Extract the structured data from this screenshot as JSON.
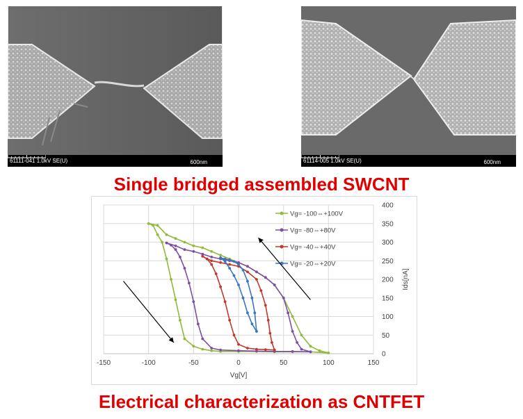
{
  "sem_images": [
    {
      "id_label": "61111-041 1.0kV SE(U)",
      "scale_label": "600nm"
    },
    {
      "id_label": "61114-005 1.0kV SE(U)",
      "scale_label": "600nm"
    }
  ],
  "captions": {
    "top": "Single bridged assembled SWCNT",
    "bottom": "Electrical characterization as CNTFET"
  },
  "colors": {
    "caption": "#e00000",
    "series": [
      "#8fba3a",
      "#7b4fa6",
      "#c0392b",
      "#3a75c4"
    ]
  },
  "chart_data": {
    "type": "scatter",
    "xlabel": "Vg[V]",
    "ylabel": "Ids[nA]",
    "xlim": [
      -150,
      150
    ],
    "ylim": [
      0,
      400
    ],
    "x_ticks": [
      -150,
      -100,
      -50,
      0,
      50,
      100,
      150
    ],
    "y_ticks": [
      0,
      50,
      100,
      150,
      200,
      250,
      300,
      350,
      400
    ],
    "y_axis_side": "right",
    "grid": true,
    "legend_position": "top-right",
    "series": [
      {
        "name": "Vg= -100⇔+100V",
        "forward": [
          [
            -100,
            350
          ],
          [
            -90,
            345
          ],
          [
            -80,
            320
          ],
          [
            -70,
            310
          ],
          [
            -60,
            300
          ],
          [
            -50,
            290
          ],
          [
            -40,
            285
          ],
          [
            -30,
            275
          ],
          [
            -20,
            265
          ],
          [
            -10,
            255
          ],
          [
            0,
            245
          ],
          [
            10,
            235
          ],
          [
            20,
            220
          ],
          [
            30,
            205
          ],
          [
            40,
            185
          ],
          [
            50,
            150
          ],
          [
            60,
            100
          ],
          [
            70,
            50
          ],
          [
            80,
            20
          ],
          [
            90,
            8
          ],
          [
            100,
            2
          ]
        ],
        "reverse": [
          [
            100,
            2
          ],
          [
            80,
            5
          ],
          [
            60,
            5
          ],
          [
            40,
            5
          ],
          [
            20,
            6
          ],
          [
            0,
            6
          ],
          [
            -20,
            6
          ],
          [
            -30,
            8
          ],
          [
            -40,
            12
          ],
          [
            -50,
            20
          ],
          [
            -60,
            40
          ],
          [
            -65,
            90
          ],
          [
            -70,
            145
          ],
          [
            -75,
            200
          ],
          [
            -80,
            255
          ],
          [
            -85,
            300
          ],
          [
            -90,
            320
          ],
          [
            -95,
            345
          ],
          [
            -100,
            350
          ]
        ]
      },
      {
        "name": "Vg= -80⇔+80V",
        "forward": [
          [
            -80,
            298
          ],
          [
            -70,
            290
          ],
          [
            -60,
            280
          ],
          [
            -50,
            275
          ],
          [
            -40,
            268
          ],
          [
            -30,
            260
          ],
          [
            -20,
            255
          ],
          [
            -10,
            250
          ],
          [
            0,
            245
          ],
          [
            10,
            235
          ],
          [
            20,
            220
          ],
          [
            30,
            205
          ],
          [
            40,
            185
          ],
          [
            50,
            150
          ],
          [
            55,
            110
          ],
          [
            60,
            60
          ],
          [
            65,
            30
          ],
          [
            70,
            12
          ],
          [
            80,
            5
          ]
        ],
        "reverse": [
          [
            80,
            5
          ],
          [
            60,
            6
          ],
          [
            40,
            6
          ],
          [
            20,
            7
          ],
          [
            0,
            8
          ],
          [
            -20,
            10
          ],
          [
            -30,
            15
          ],
          [
            -40,
            40
          ],
          [
            -45,
            80
          ],
          [
            -50,
            140
          ],
          [
            -55,
            190
          ],
          [
            -60,
            230
          ],
          [
            -65,
            260
          ],
          [
            -70,
            280
          ],
          [
            -75,
            292
          ],
          [
            -80,
            298
          ]
        ]
      },
      {
        "name": "Vg= -40⇔+40V",
        "forward": [
          [
            -40,
            262
          ],
          [
            -35,
            255
          ],
          [
            -30,
            250
          ],
          [
            -20,
            245
          ],
          [
            -10,
            240
          ],
          [
            0,
            235
          ],
          [
            10,
            220
          ],
          [
            20,
            200
          ],
          [
            25,
            170
          ],
          [
            30,
            130
          ],
          [
            33,
            90
          ],
          [
            35,
            55
          ],
          [
            37,
            30
          ],
          [
            40,
            10
          ]
        ],
        "reverse": [
          [
            40,
            10
          ],
          [
            30,
            11
          ],
          [
            20,
            12
          ],
          [
            10,
            15
          ],
          [
            0,
            25
          ],
          [
            -5,
            50
          ],
          [
            -10,
            90
          ],
          [
            -15,
            140
          ],
          [
            -20,
            180
          ],
          [
            -25,
            215
          ],
          [
            -30,
            240
          ],
          [
            -35,
            255
          ],
          [
            -40,
            262
          ]
        ]
      },
      {
        "name": "Vg= -20⇔+20V",
        "forward": [
          [
            -20,
            258
          ],
          [
            -15,
            255
          ],
          [
            -10,
            252
          ],
          [
            -5,
            248
          ],
          [
            0,
            240
          ],
          [
            5,
            225
          ],
          [
            10,
            195
          ],
          [
            15,
            150
          ],
          [
            18,
            110
          ],
          [
            20,
            60
          ]
        ],
        "reverse": [
          [
            20,
            60
          ],
          [
            15,
            80
          ],
          [
            10,
            110
          ],
          [
            5,
            150
          ],
          [
            0,
            185
          ],
          [
            -5,
            210
          ],
          [
            -10,
            230
          ],
          [
            -15,
            248
          ],
          [
            -20,
            258
          ]
        ]
      }
    ]
  }
}
